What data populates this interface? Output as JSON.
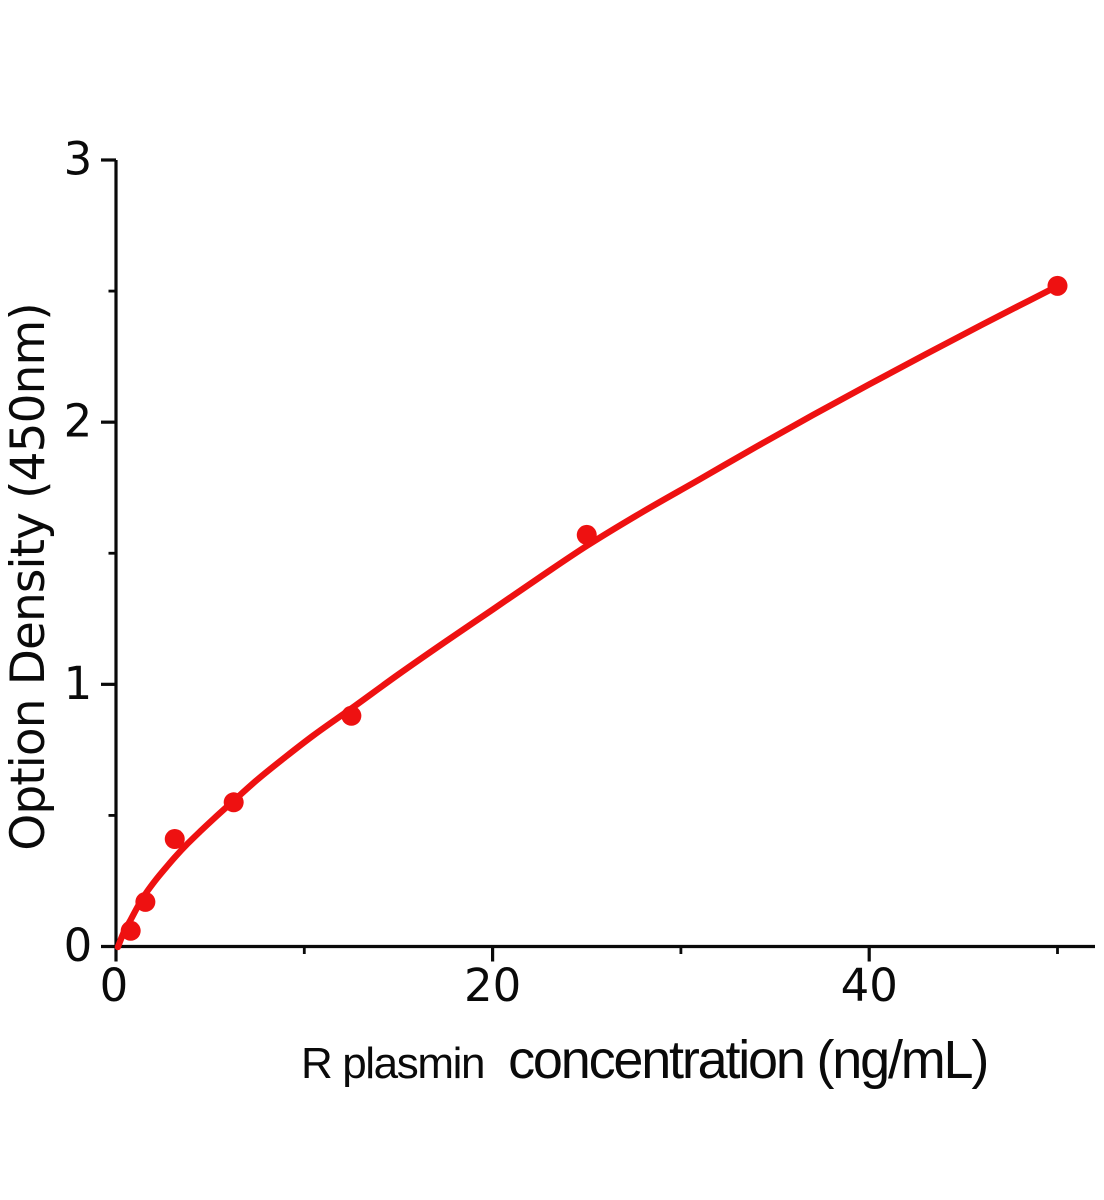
{
  "chart_data": {
    "type": "scatter",
    "xlabel_prefix": "R plasmin",
    "xlabel_main": "concentration (ng/mL)",
    "ylabel": "Option Density  (450nm)",
    "xlim": [
      0,
      52
    ],
    "ylim": [
      0,
      3
    ],
    "x_major_ticks": [
      0,
      20,
      40
    ],
    "x_major_tick_labels": [
      "0",
      "20",
      "40"
    ],
    "x_minor_ticks": [
      10,
      30,
      50
    ],
    "y_major_ticks": [
      0,
      1,
      2,
      3
    ],
    "y_major_tick_labels": [
      "0",
      "1",
      "2",
      "3"
    ],
    "y_minor_ticks": [
      0.5,
      1.5,
      2.5
    ],
    "grid": false,
    "legend": false,
    "series": [
      {
        "name": "standard-points",
        "kind": "scatter",
        "x": [
          0.78,
          1.56,
          3.12,
          6.25,
          12.5,
          25,
          50
        ],
        "y": [
          0.06,
          0.17,
          0.41,
          0.55,
          0.88,
          1.57,
          2.52
        ]
      },
      {
        "name": "fitted-curve",
        "kind": "line",
        "x": [
          0.1,
          0.4,
          0.78,
          1.2,
          1.56,
          2.1,
          2.7,
          3.12,
          3.8,
          4.5,
          5.2,
          6.25,
          7.5,
          9.0,
          10.5,
          12.5,
          15,
          17.5,
          20,
          22.5,
          25,
          28,
          31,
          34,
          37,
          40,
          43,
          46,
          48.5,
          50.03
        ],
        "y": [
          -0.002,
          0.052,
          0.102,
          0.158,
          0.2,
          0.253,
          0.305,
          0.34,
          0.392,
          0.441,
          0.488,
          0.556,
          0.636,
          0.723,
          0.806,
          0.908,
          1.038,
          1.163,
          1.285,
          1.408,
          1.528,
          1.659,
          1.782,
          1.906,
          2.027,
          2.144,
          2.259,
          2.372,
          2.464,
          2.52
        ]
      }
    ],
    "colors": {
      "series": "#ee1111",
      "axis": "#0a0a0a",
      "background": "#ffffff"
    },
    "marker_radius": 10,
    "curve_stroke_width": 6.3
  }
}
